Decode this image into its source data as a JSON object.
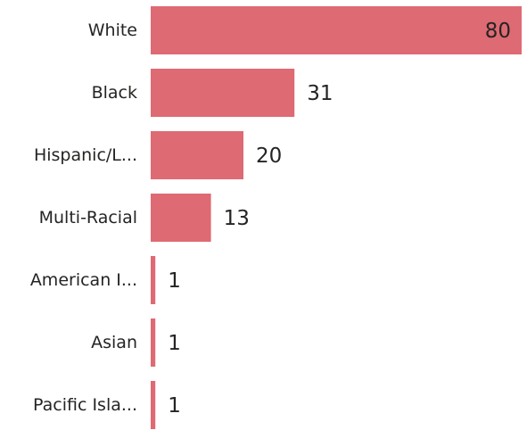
{
  "chart_data": {
    "type": "bar",
    "orientation": "horizontal",
    "categories": [
      "White",
      "Black",
      "Hispanic/L...",
      "Multi-Racial",
      "American I...",
      "Asian",
      "Pacific Isla..."
    ],
    "values": [
      80,
      31,
      20,
      13,
      1,
      1,
      1
    ],
    "data_labels": [
      "80",
      "31",
      "20",
      "13",
      "1",
      "1",
      "1"
    ],
    "xlim": [
      0,
      80
    ],
    "grid": false,
    "legend": "none",
    "bar_color": "#de6a73"
  }
}
